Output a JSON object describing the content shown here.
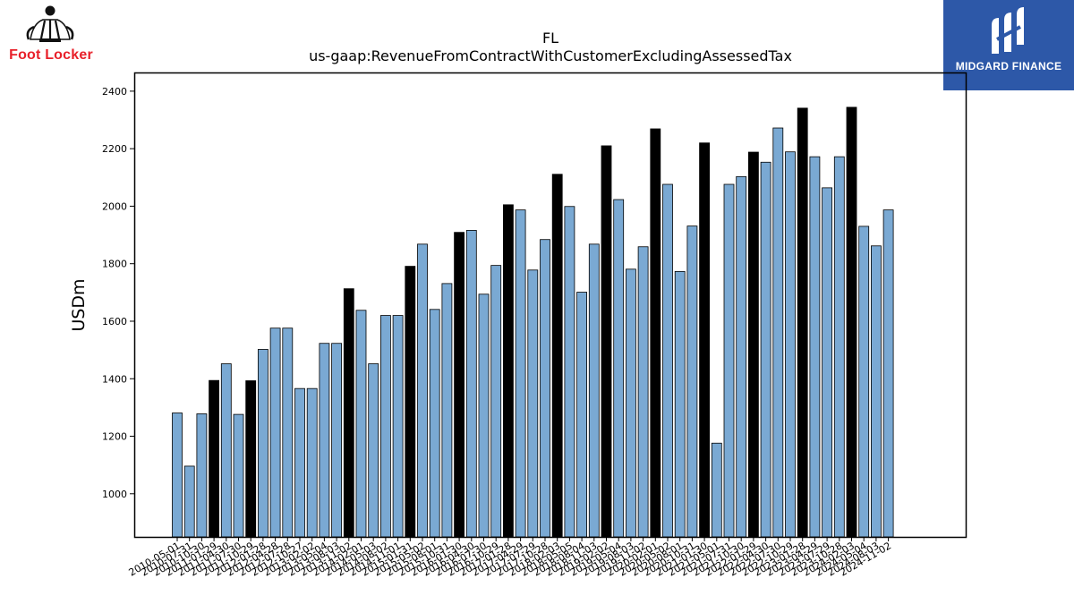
{
  "header": {
    "ticker": "FL",
    "concept": "us-gaap:RevenueFromContractWithCustomerExcludingAssessedTax"
  },
  "logos": {
    "left": {
      "text": "Foot Locker",
      "icon": "referee-figure-icon",
      "color": "#e8202a"
    },
    "right": {
      "text": "MIDGARD FINANCE",
      "icon": "midgard-m-icon",
      "background": "#2d58a8"
    }
  },
  "chart_data": {
    "type": "bar",
    "title": "FL\nus-gaap:RevenueFromContractWithCustomerExcludingAssessedTax",
    "xlabel": "",
    "ylabel": "USDm",
    "ylim": [
      850,
      2465
    ],
    "yticks": [
      1000,
      1200,
      1400,
      1600,
      1800,
      2000,
      2200,
      2400
    ],
    "grid": false,
    "colors": {
      "quarter": "#7aa9d3",
      "annual": "#000000",
      "edge": "#000000"
    },
    "categories": [
      "2010-05-01",
      "2010-07-31",
      "2010-10-30",
      "2011-01-29",
      "2011-04-30",
      "2011-07-30",
      "2011-10-29",
      "2012-01-28",
      "2012-04-28",
      "2012-07-28",
      "2012-10-27",
      "2013-02-02",
      "2013-05-04",
      "2013-08-03",
      "2013-11-02",
      "2014-02-01",
      "2014-05-03",
      "2014-08-02",
      "2014-11-01",
      "2015-01-31",
      "2015-05-02",
      "2015-08-01",
      "2015-10-31",
      "2016-01-30",
      "2016-04-30",
      "2016-07-30",
      "2016-10-29",
      "2017-01-28",
      "2017-04-29",
      "2017-07-29",
      "2017-10-28",
      "2018-02-03",
      "2018-05-05",
      "2018-08-04",
      "2018-11-03",
      "2019-02-02",
      "2019-05-04",
      "2019-08-03",
      "2019-11-02",
      "2020-02-01",
      "2020-05-02",
      "2020-08-01",
      "2020-10-31",
      "2021-01-30",
      "2021-05-01",
      "2021-07-31",
      "2021-10-30",
      "2022-01-29",
      "2022-04-30",
      "2022-07-30",
      "2022-10-29",
      "2023-01-28",
      "2023-04-29",
      "2023-07-29",
      "2023-10-28",
      "2024-02-03",
      "2024-05-04",
      "2024-08-03",
      "2024-11-02"
    ],
    "tick_labels": [
      "2010-05-01",
      "2010-07-31",
      "2010-10-30",
      "2011-01-29",
      "2011-04-30",
      "2011-07-30",
      "2011-10-29",
      "2012-01-28",
      "2012-04-28",
      "2012-07-28",
      "2012-10-27",
      "2013-02-02",
      "2013-05-04",
      "2013-08-03",
      "2013-11-02",
      "2014-02-01",
      "2014-05-03",
      "2014-08-02",
      "2014-11-01",
      "2015-01-31",
      "2015-05-02",
      "2015-08-01",
      "2015-10-31",
      "2016-01-30",
      "2016-04-30",
      "2016-07-30",
      "2016-10-29",
      "2017-01-28",
      "2017-04-29",
      "2017-07-29",
      "2017-10-28",
      "2018-02-03",
      "2018-05-05",
      "2018-08-04",
      "2018-11-03",
      "2019-02-02",
      "2019-05-04",
      "2019-08-03",
      "2019-11-02",
      "2020-02-01",
      "2020-05-02",
      "2020-08-01",
      "2020-10-31",
      "2021-01-30",
      "2021-05-01",
      "2021-07-31",
      "2021-10-30",
      "2022-01-29",
      "2022-04-30",
      "2022-07-30",
      "2022-10-29",
      "2023-01-28",
      "2023-04-29",
      "2023-07-29",
      "2023-10-28",
      "2024-02-03",
      "2024-05-04",
      "2024-08-03",
      "2024-11-02"
    ],
    "values": [
      1281,
      1096,
      1278,
      1394,
      1452,
      1276,
      1393,
      1502,
      1576,
      1576,
      1366,
      1366,
      1523,
      1523,
      1713,
      1638,
      1452,
      1620,
      1620,
      1791,
      1868,
      1641,
      1731,
      1909,
      1916,
      1694,
      1794,
      2005,
      1987,
      1778,
      1884,
      2111,
      1999,
      1701,
      1868,
      2210,
      2023,
      1781,
      1859,
      2269,
      2076,
      1773,
      1931,
      2220,
      1176,
      2076,
      2103,
      2188,
      2153,
      2272,
      2189,
      2341,
      2172,
      2064,
      2172,
      2344,
      1930,
      1862,
      1987
    ],
    "annual_flags": [
      false,
      false,
      false,
      true,
      false,
      false,
      true,
      false,
      false,
      false,
      false,
      false,
      false,
      false,
      true,
      false,
      false,
      false,
      false,
      true,
      false,
      false,
      false,
      true,
      false,
      false,
      false,
      true,
      false,
      false,
      false,
      true,
      false,
      false,
      false,
      true,
      false,
      false,
      false,
      true,
      false,
      false,
      false,
      true,
      false,
      false,
      false,
      true,
      false,
      false,
      false,
      true,
      false,
      false,
      false,
      true,
      false,
      false,
      false
    ]
  }
}
